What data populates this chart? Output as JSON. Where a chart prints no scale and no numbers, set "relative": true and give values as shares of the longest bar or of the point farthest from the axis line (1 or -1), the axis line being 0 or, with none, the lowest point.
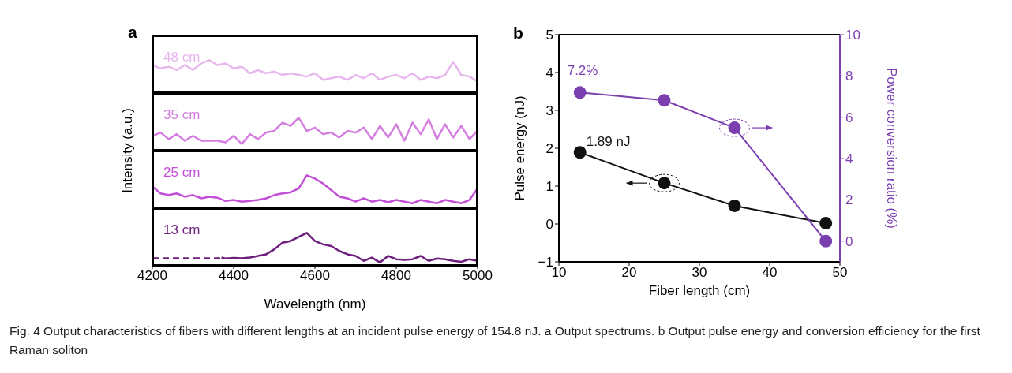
{
  "chart_data": [
    {
      "type": "line",
      "title": "a",
      "relative": true,
      "xlim": [
        4200,
        5000
      ],
      "xticks": [
        4200,
        4400,
        4600,
        4800,
        5000
      ],
      "tick_labels": false,
      "series": [
        {
          "name": "48 cm",
          "color": "#e6b6ec",
          "x": [
            4200,
            4220,
            4240,
            4260,
            4280,
            4300,
            4320,
            4340,
            4360,
            4380,
            4400,
            4420,
            4440,
            4460,
            4480,
            4500,
            4520,
            4540,
            4560,
            4580,
            4600,
            4620,
            4640,
            4660,
            4680,
            4700,
            4720,
            4740,
            4760,
            4780,
            4800,
            4820,
            4840,
            4860,
            4880,
            4900,
            4920,
            4940,
            4960,
            4980,
            5000
          ],
          "values": [
            0.85,
            0.75,
            0.8,
            0.7,
            0.85,
            0.7,
            0.9,
            1.0,
            0.85,
            0.9,
            0.75,
            0.8,
            0.6,
            0.7,
            0.6,
            0.65,
            0.55,
            0.6,
            0.55,
            0.5,
            0.6,
            0.4,
            0.45,
            0.5,
            0.4,
            0.55,
            0.45,
            0.6,
            0.4,
            0.5,
            0.55,
            0.45,
            0.6,
            0.4,
            0.5,
            0.45,
            0.55,
            0.95,
            0.55,
            0.5,
            0.35
          ]
        }
      ]
    },
    {
      "type": "line",
      "relative": true,
      "xlim": [
        4200,
        5000
      ],
      "xticks": [
        4200,
        4400,
        4600,
        4800,
        5000
      ],
      "tick_labels": false,
      "series": [
        {
          "name": "35 cm",
          "color": "#d47fe0",
          "x": [
            4200,
            4220,
            4240,
            4260,
            4280,
            4300,
            4320,
            4340,
            4360,
            4380,
            4400,
            4420,
            4440,
            4460,
            4480,
            4500,
            4520,
            4540,
            4560,
            4580,
            4600,
            4620,
            4640,
            4660,
            4680,
            4700,
            4720,
            4740,
            4760,
            4780,
            4800,
            4820,
            4840,
            4860,
            4880,
            4900,
            4920,
            4940,
            4960,
            4980,
            5000
          ],
          "values": [
            0.45,
            0.55,
            0.35,
            0.5,
            0.3,
            0.45,
            0.3,
            0.3,
            0.3,
            0.25,
            0.45,
            0.2,
            0.5,
            0.35,
            0.55,
            0.6,
            0.85,
            0.75,
            1.0,
            0.6,
            0.7,
            0.5,
            0.55,
            0.4,
            0.6,
            0.55,
            0.7,
            0.35,
            0.75,
            0.4,
            0.8,
            0.3,
            0.85,
            0.5,
            0.95,
            0.35,
            0.8,
            0.4,
            0.75,
            0.35,
            0.6
          ]
        }
      ]
    },
    {
      "type": "line",
      "relative": true,
      "xlim": [
        4200,
        5000
      ],
      "xticks": [
        4200,
        4400,
        4600,
        4800,
        5000
      ],
      "tick_labels": false,
      "series": [
        {
          "name": "25 cm",
          "color": "#c24fd6",
          "x": [
            4200,
            4220,
            4240,
            4260,
            4280,
            4300,
            4320,
            4340,
            4360,
            4380,
            4400,
            4420,
            4440,
            4460,
            4480,
            4500,
            4520,
            4540,
            4560,
            4580,
            4600,
            4620,
            4640,
            4660,
            4680,
            4700,
            4720,
            4740,
            4760,
            4780,
            4800,
            4820,
            4840,
            4860,
            4880,
            4900,
            4920,
            4940,
            4960,
            4980,
            5000
          ],
          "values": [
            0.66,
            0.45,
            0.4,
            0.45,
            0.35,
            0.4,
            0.3,
            0.35,
            0.32,
            0.22,
            0.25,
            0.2,
            0.22,
            0.25,
            0.3,
            0.4,
            0.45,
            0.48,
            0.6,
            1.0,
            0.9,
            0.75,
            0.55,
            0.35,
            0.3,
            0.2,
            0.3,
            0.2,
            0.25,
            0.18,
            0.25,
            0.2,
            0.15,
            0.25,
            0.2,
            0.15,
            0.25,
            0.2,
            0.15,
            0.25,
            0.6
          ]
        }
      ]
    },
    {
      "type": "line",
      "relative": true,
      "xlabel": "Wavelength (nm)",
      "ylabel": "Intensity (a.u.)",
      "xlim": [
        4200,
        5000
      ],
      "xticks": [
        4200,
        4400,
        4600,
        4800,
        5000
      ],
      "series": [
        {
          "color": "#6e1e7c",
          "line_style": "dashed",
          "x": [
            4200,
            4370
          ],
          "values": [
            0.23,
            0.23
          ]
        },
        {
          "name": "13 cm",
          "color": "#6e1e7c",
          "x": [
            4370,
            4380,
            4400,
            4420,
            4440,
            4460,
            4480,
            4500,
            4520,
            4540,
            4560,
            4580,
            4600,
            4620,
            4640,
            4660,
            4680,
            4700,
            4720,
            4740,
            4760,
            4780,
            4800,
            4820,
            4840,
            4860,
            4880,
            4900,
            4920,
            4940,
            4960,
            4980,
            5000
          ],
          "values": [
            0.25,
            0.22,
            0.24,
            0.23,
            0.25,
            0.3,
            0.35,
            0.5,
            0.7,
            0.75,
            0.88,
            1.0,
            0.75,
            0.65,
            0.6,
            0.45,
            0.35,
            0.3,
            0.15,
            0.25,
            0.1,
            0.3,
            0.2,
            0.18,
            0.2,
            0.3,
            0.15,
            0.22,
            0.2,
            0.15,
            0.12,
            0.2,
            0.15
          ]
        }
      ]
    },
    {
      "type": "line",
      "title": "b",
      "xlabel": "Fiber length (cm)",
      "ylabel": "Pulse energy (nJ)",
      "y2label": "Power conversion ratio (%)",
      "x": [
        13,
        25,
        35,
        48
      ],
      "xlim": [
        10,
        50
      ],
      "xticks": [
        10,
        20,
        30,
        40,
        50
      ],
      "ylim": [
        -1,
        5
      ],
      "yticks": [
        -1,
        0,
        1,
        2,
        3,
        4,
        5
      ],
      "y2lim": [
        -1,
        10
      ],
      "y2ticks": [
        0,
        2,
        4,
        6,
        8,
        10
      ],
      "marker": "circle",
      "annotations": [
        "Fig. 4 Output characteristics of fibers with different lengths at an incident pulse energy of 154.8 nJ. a Output spectrums. b Output pulse energy and conversion efficiency for the first Raman soliton"
      ],
      "series": [
        {
          "color": "#111111",
          "axis": "y",
          "values": [
            1.89,
            1.08,
            0.48,
            0.02
          ],
          "value_labels": [
            "1.89 nJ",
            null,
            null,
            null
          ]
        },
        {
          "color": "#7b3fb0",
          "axis": "y2",
          "values": [
            7.2,
            6.82,
            5.49,
            0
          ],
          "value_labels": [
            "7.2%",
            null,
            null,
            null
          ]
        }
      ]
    }
  ]
}
